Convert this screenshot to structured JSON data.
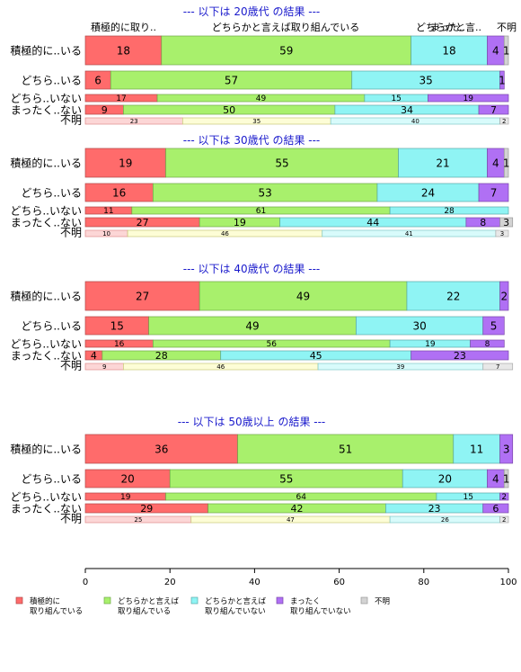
{
  "chart_data": {
    "type": "bar",
    "orientation": "horizontal",
    "stacked": true,
    "xlim": [
      0,
      100
    ],
    "x_ticks": [
      "0",
      "20",
      "40",
      "60",
      "80",
      "100"
    ],
    "grid": false,
    "legend_position": "bottom",
    "top_labels": [
      "積極的に取り..",
      "どちらかと言えば取り組んでいる",
      "どちらかと言..",
      "まった..",
      "不明"
    ],
    "legend": [
      {
        "name": "積極的に\n取り組んでいる",
        "color": "#ff6b6b"
      },
      {
        "name": "どちらかと言えば\n取り組んでいる",
        "color": "#a8f06c"
      },
      {
        "name": "どちらかと言えば\n取り組んでいない",
        "color": "#8ff4f4"
      },
      {
        "name": "まったく\n取り組んでいない",
        "color": "#b070f4"
      },
      {
        "name": "不明",
        "color": "#d3d3d3"
      }
    ],
    "panels": [
      {
        "title": "--- 以下は 20歳代 の結果 ---",
        "rows": [
          {
            "label": "積極的に..いる",
            "size": "large",
            "values": [
              18,
              59,
              18,
              4,
              1
            ],
            "labels": [
              "18",
              "59",
              "18",
              "4",
              "1"
            ]
          },
          {
            "label": "どちら..いる",
            "size": "medium",
            "values": [
              6,
              57,
              35,
              1,
              0
            ],
            "labels": [
              "6",
              "57",
              "35",
              "1",
              ""
            ]
          },
          {
            "label": "どちら..いない",
            "size": "small",
            "values": [
              17,
              49,
              15,
              19,
              0
            ],
            "labels": [
              "17",
              "49",
              "15",
              "19",
              ""
            ]
          },
          {
            "label": "まったく..ない",
            "size": "small",
            "values": [
              9,
              50,
              34,
              7,
              0
            ],
            "labels": [
              "9",
              "50",
              "34",
              "7",
              ""
            ]
          },
          {
            "label": "不明",
            "size": "tiny",
            "values": [
              23,
              35,
              40,
              0,
              2
            ],
            "labels": [
              "23",
              "35",
              "40",
              "",
              "2"
            ]
          }
        ]
      },
      {
        "title": "--- 以下は 30歳代 の結果 ---",
        "rows": [
          {
            "label": "積極的に..いる",
            "size": "large",
            "values": [
              19,
              55,
              21,
              4,
              1
            ],
            "labels": [
              "19",
              "55",
              "21",
              "4",
              "1"
            ]
          },
          {
            "label": "どちら..いる",
            "size": "medium",
            "values": [
              16,
              53,
              24,
              7,
              0
            ],
            "labels": [
              "16",
              "53",
              "24",
              "7",
              ""
            ]
          },
          {
            "label": "どちら..いない",
            "size": "small",
            "values": [
              11,
              61,
              28,
              0,
              0
            ],
            "labels": [
              "11",
              "61",
              "28",
              "",
              ""
            ]
          },
          {
            "label": "まったく..ない",
            "size": "small",
            "values": [
              27,
              19,
              44,
              8,
              3
            ],
            "labels": [
              "27",
              "19",
              "44",
              "8",
              "3"
            ]
          },
          {
            "label": "不明",
            "size": "tiny",
            "values": [
              10,
              46,
              41,
              0,
              3
            ],
            "labels": [
              "10",
              "46",
              "41",
              "",
              "3"
            ]
          }
        ]
      },
      {
        "title": "--- 以下は 40歳代 の結果 ---",
        "rows": [
          {
            "label": "積極的に..いる",
            "size": "large",
            "values": [
              27,
              49,
              22,
              2,
              0
            ],
            "labels": [
              "27",
              "49",
              "22",
              "2",
              ""
            ]
          },
          {
            "label": "どちら..いる",
            "size": "medium",
            "values": [
              15,
              49,
              30,
              5,
              0
            ],
            "labels": [
              "15",
              "49",
              "30",
              "5",
              ""
            ]
          },
          {
            "label": "どちら..いない",
            "size": "small",
            "values": [
              16,
              56,
              19,
              8,
              0
            ],
            "labels": [
              "16",
              "56",
              "19",
              "8",
              ""
            ]
          },
          {
            "label": "まったく..ない",
            "size": "small",
            "values": [
              4,
              28,
              45,
              23,
              0
            ],
            "labels": [
              "4",
              "28",
              "45",
              "23",
              ""
            ]
          },
          {
            "label": "不明",
            "size": "tiny",
            "values": [
              9,
              46,
              39,
              0,
              7
            ],
            "labels": [
              "9",
              "46",
              "39",
              "",
              "7"
            ]
          }
        ]
      },
      {
        "title": "--- 以下は 50歳以上 の結果 ---",
        "rows": [
          {
            "label": "積極的に..いる",
            "size": "large",
            "values": [
              36,
              51,
              11,
              3,
              0
            ],
            "labels": [
              "36",
              "51",
              "11",
              "3",
              ""
            ]
          },
          {
            "label": "どちら..いる",
            "size": "medium",
            "values": [
              20,
              55,
              20,
              4,
              1
            ],
            "labels": [
              "20",
              "55",
              "20",
              "4",
              "1"
            ]
          },
          {
            "label": "どちら..いない",
            "size": "small",
            "values": [
              19,
              64,
              15,
              2,
              0
            ],
            "labels": [
              "19",
              "64",
              "15",
              "2",
              ""
            ]
          },
          {
            "label": "まったく..ない",
            "size": "small",
            "values": [
              29,
              42,
              23,
              6,
              0
            ],
            "labels": [
              "29",
              "42",
              "23",
              "6",
              ""
            ]
          },
          {
            "label": "不明",
            "size": "tiny",
            "values": [
              25,
              47,
              26,
              0,
              2
            ],
            "labels": [
              "25",
              "47",
              "26",
              "",
              "2"
            ]
          }
        ]
      }
    ]
  }
}
